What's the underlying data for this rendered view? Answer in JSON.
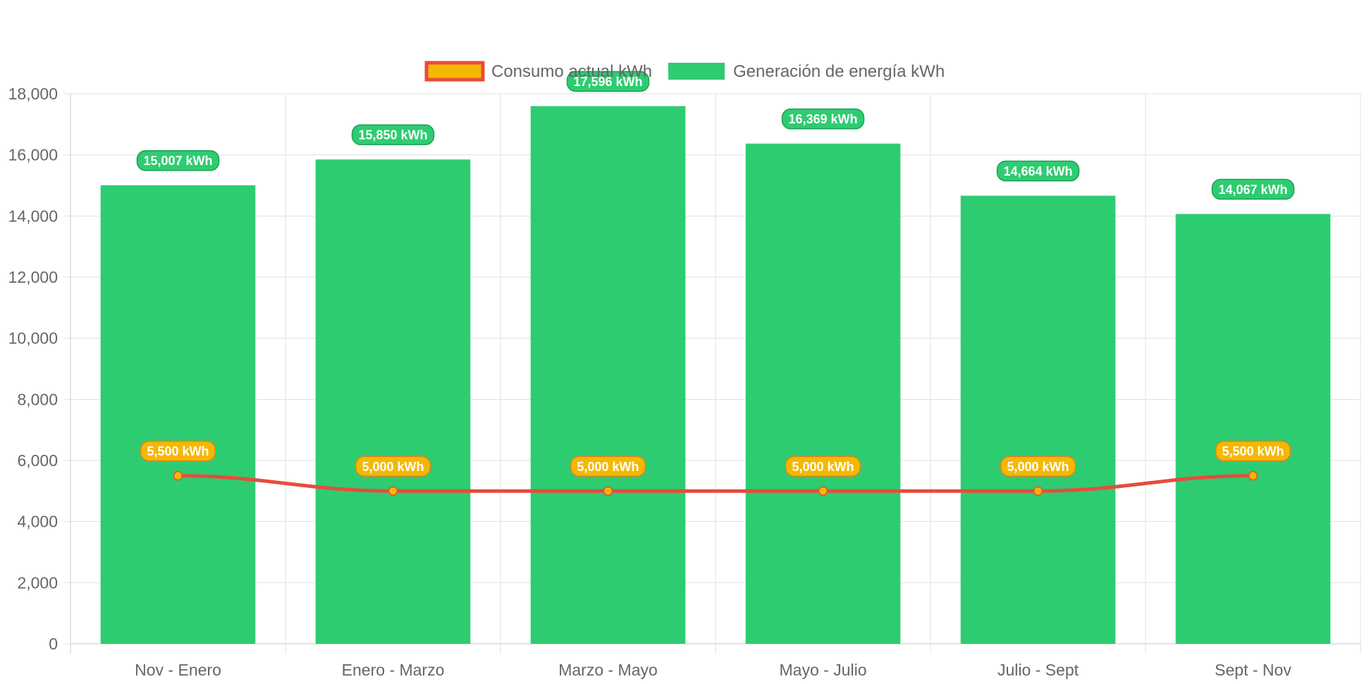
{
  "chart_data": {
    "type": "bar",
    "categories": [
      "Nov - Enero",
      "Enero - Marzo",
      "Marzo - Mayo",
      "Mayo - Julio",
      "Julio - Sept",
      "Sept - Nov"
    ],
    "series": [
      {
        "name": "Consumo actual kWh",
        "type": "line",
        "values": [
          5500,
          5000,
          5000,
          5000,
          5000,
          5500
        ],
        "labels": [
          "5,500 kWh",
          "5,000 kWh",
          "5,000 kWh",
          "5,000 kWh",
          "5,000 kWh",
          "5,500 kWh"
        ],
        "color": "#e74c3c",
        "fill_color": "#f5b800"
      },
      {
        "name": "Generación de energía kWh",
        "type": "bar",
        "values": [
          15007,
          15850,
          17596,
          16369,
          14664,
          14067
        ],
        "labels": [
          "15,007 kWh",
          "15,850 kWh",
          "17,596 kWh",
          "16,369 kWh",
          "14,664 kWh",
          "14,067 kWh"
        ],
        "color": "#2ecc71",
        "border_color": "#27ae60"
      }
    ],
    "ylim": [
      0,
      18000
    ],
    "yticks": [
      0,
      2000,
      4000,
      6000,
      8000,
      10000,
      12000,
      14000,
      16000,
      18000
    ],
    "ytick_labels": [
      "0",
      "2,000",
      "4,000",
      "6,000",
      "8,000",
      "10,000",
      "12,000",
      "14,000",
      "16,000",
      "18,000"
    ],
    "grid": true,
    "legend_position": "top-center",
    "title": "",
    "xlabel": "",
    "ylabel": ""
  }
}
